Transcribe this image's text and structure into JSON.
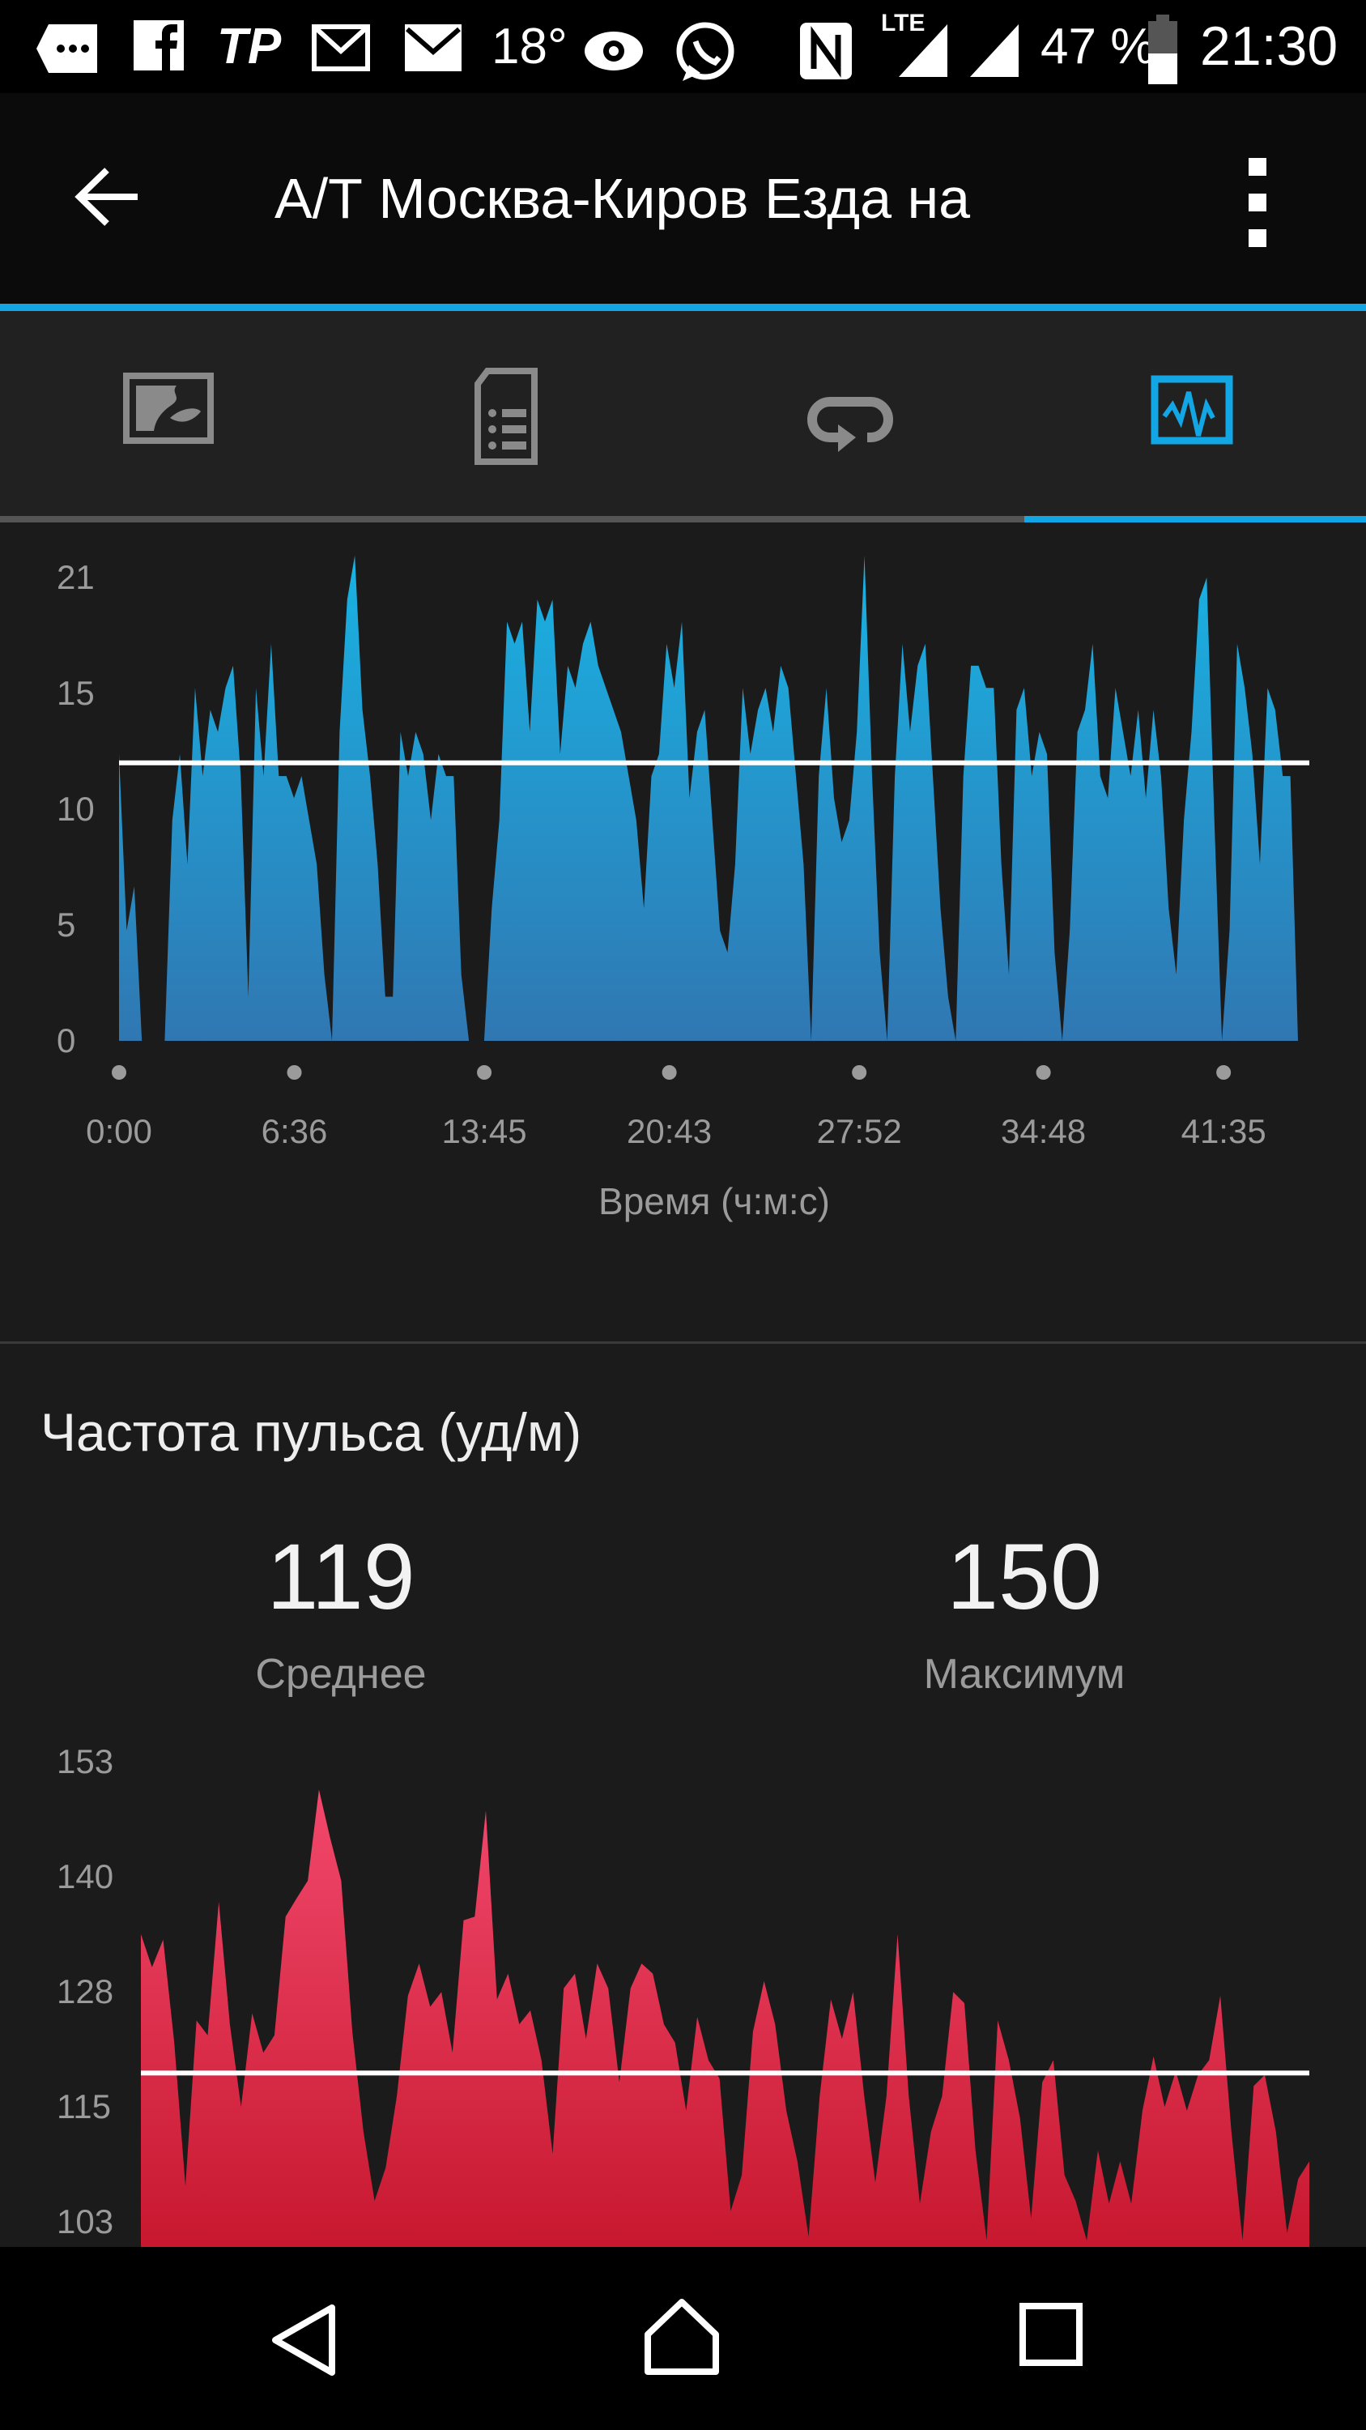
{
  "status_bar": {
    "icons": [
      "chat-icon",
      "facebook-icon",
      "tp-icon",
      "mail-icon",
      "mail-icon",
      "weather-icon",
      "eye-icon",
      "whatsapp-icon",
      "nfc-icon",
      "signal-icon",
      "signal-icon",
      "battery-icon"
    ],
    "tp": "TP",
    "temp": "18°",
    "lte": "LTE",
    "battery": "47 %",
    "time": "21:30"
  },
  "app_bar": {
    "title": "А/Т Москва-Киров Езда на",
    "back_icon": "arrow-left-icon",
    "menu_icon": "more-vert-icon"
  },
  "tabs": [
    {
      "icon": "map-icon",
      "active": false
    },
    {
      "icon": "document-list-icon",
      "active": false
    },
    {
      "icon": "loop-icon",
      "active": false
    },
    {
      "icon": "chart-icon",
      "active": true
    }
  ],
  "colors": {
    "accent": "#12a6e4",
    "speed_top": "#19b2e3",
    "speed_bottom": "#3077b2",
    "hr_top": "#f2486c",
    "hr_bottom": "#c7182f",
    "average_line": "#ffffff"
  },
  "heart_rate": {
    "title": "Частота пульса (уд/м)",
    "average": "119",
    "average_label": "Среднее",
    "max": "150",
    "max_label": "Максимум"
  },
  "chart_data": [
    {
      "type": "area",
      "xlabel": "Время (ч:м:с)",
      "ylabel": "",
      "x_tick_labels": [
        "0:00",
        "6:36",
        "13:45",
        "20:43",
        "27:52",
        "34:48",
        "41:35"
      ],
      "x_range": [
        "0:00",
        "44:23"
      ],
      "y_tick_labels": [
        "0",
        "5",
        "10",
        "15",
        "21"
      ],
      "ylim": [
        0,
        23.4
      ],
      "average": 12.6,
      "grid": false,
      "values": [
        13,
        5,
        7,
        0,
        0,
        0,
        0,
        10,
        13,
        8,
        16,
        12,
        15,
        14,
        16,
        17,
        12,
        2,
        16,
        12,
        18,
        12,
        12,
        11,
        12,
        10,
        8,
        3,
        0,
        14,
        20,
        22,
        15,
        12,
        8,
        2,
        2,
        14,
        12,
        14,
        13,
        10,
        13,
        12,
        12,
        3,
        0,
        0,
        0,
        6,
        10,
        19,
        18,
        19,
        14,
        20,
        19,
        20,
        13,
        17,
        16,
        18,
        19,
        17,
        16,
        15,
        14,
        12,
        10,
        6,
        12,
        13,
        18,
        16,
        19,
        11,
        14,
        15,
        10,
        5,
        4,
        8,
        16,
        13,
        15,
        16,
        14,
        17,
        16,
        12,
        8,
        0,
        12,
        16,
        11,
        9,
        10,
        14,
        22,
        12,
        4,
        0,
        12,
        18,
        14,
        17,
        18,
        12,
        6,
        2,
        0,
        12,
        17,
        17,
        16,
        16,
        8,
        3,
        15,
        16,
        12,
        14,
        13,
        4,
        0,
        5,
        14,
        15,
        18,
        12,
        11,
        16,
        14,
        12,
        15,
        11,
        15,
        12,
        6,
        3,
        10,
        14,
        20,
        21,
        10,
        0,
        5,
        18,
        16,
        13,
        8,
        16,
        15,
        12,
        12,
        0
      ]
    },
    {
      "type": "area",
      "title": "Частота пульса (уд/м)",
      "y_tick_labels": [
        "153",
        "140",
        "128",
        "115",
        "103"
      ],
      "ylim": [
        100.3,
        155
      ],
      "average": 119.2,
      "grid": false,
      "values": [
        134.3,
        130.7,
        133.7,
        122.5,
        106.9,
        124.9,
        123.3,
        137.8,
        124.5,
        115.5,
        125.7,
        121.4,
        123.3,
        136.2,
        138.2,
        140.1,
        150,
        144.8,
        140.1,
        123.7,
        112.8,
        105.3,
        108.9,
        116.7,
        127.6,
        131.1,
        126.4,
        128,
        121.4,
        135.8,
        136.2,
        147.7,
        127.2,
        130,
        124.5,
        126,
        120.6,
        110.4,
        128.4,
        130,
        122.9,
        131.1,
        128.4,
        118.2,
        128.4,
        131.1,
        130,
        124.5,
        122.5,
        115.1,
        125.3,
        120.6,
        118.6,
        104.2,
        108.1,
        123.7,
        129.2,
        124.5,
        115.1,
        109.6,
        101.4,
        116.7,
        127.2,
        122.9,
        128,
        116.7,
        107.3,
        116.7,
        134.3,
        116.7,
        105,
        112.8,
        116.7,
        128,
        126.8,
        110.8,
        101,
        124.9,
        120.6,
        114.3,
        103.4,
        118.2,
        120.6,
        108.1,
        105.3,
        101,
        110.8,
        105,
        109.6,
        105,
        115.1,
        121,
        115.5,
        119.4,
        115.1,
        119,
        120.6,
        127.6,
        112.8,
        101,
        117.8,
        119,
        112.8,
        101.8,
        107.7,
        109.6
      ]
    }
  ],
  "nav_bar": {
    "icons": [
      "back-icon",
      "home-icon",
      "recents-icon"
    ]
  }
}
